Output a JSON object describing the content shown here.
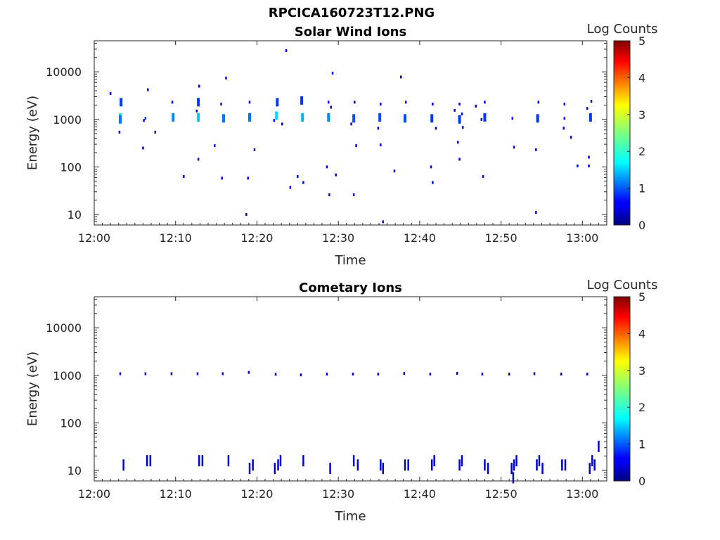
{
  "figure": {
    "title": "RPCICA160723T12.PNG"
  },
  "chart_data": [
    {
      "type": "heatmap",
      "title": "Solar Wind Ions",
      "xlabel": "Time",
      "ylabel": "Energy (eV)",
      "xticks": [
        "12:00",
        "12:10",
        "12:20",
        "12:30",
        "12:40",
        "12:50",
        "13:00"
      ],
      "xlim_minutes": [
        0,
        63
      ],
      "yscale": "log",
      "ylim": [
        6,
        45000
      ],
      "yticks": [
        10,
        100,
        1000,
        10000
      ],
      "ytick_labels": [
        "10",
        "100",
        "1000",
        "10000"
      ],
      "colorbar": {
        "label": "Log Counts",
        "range": [
          0,
          5
        ],
        "ticks": [
          "0",
          "1",
          "2",
          "3",
          "4",
          "5"
        ],
        "colormap": "jet"
      },
      "points": [
        [
          3.2,
          1100,
          1.8
        ],
        [
          3.2,
          1000,
          1.2
        ],
        [
          3.3,
          2300,
          0.9
        ],
        [
          2.0,
          3500,
          0.5
        ],
        [
          3.1,
          540,
          0.5
        ],
        [
          6.3,
          1050,
          0.8
        ],
        [
          6.1,
          950,
          0.5
        ],
        [
          6.6,
          4200,
          0.5
        ],
        [
          6.0,
          250,
          0.5
        ],
        [
          7.5,
          540,
          0.5
        ],
        [
          9.7,
          1100,
          1.3
        ],
        [
          9.6,
          2300,
          0.5
        ],
        [
          11.0,
          63,
          0.5
        ],
        [
          12.8,
          1100,
          1.6
        ],
        [
          12.8,
          2300,
          0.9
        ],
        [
          12.9,
          5000,
          0.5
        ],
        [
          12.8,
          145,
          0.5
        ],
        [
          12.6,
          1500,
          0.5
        ],
        [
          15.9,
          1050,
          1.2
        ],
        [
          15.6,
          2100,
          0.6
        ],
        [
          15.7,
          58,
          0.5
        ],
        [
          16.2,
          7400,
          0.5
        ],
        [
          14.8,
          280,
          0.5
        ],
        [
          19.1,
          1100,
          1.2
        ],
        [
          19.1,
          2300,
          0.5
        ],
        [
          18.9,
          58,
          0.5
        ],
        [
          19.7,
          230,
          0.5
        ],
        [
          18.7,
          10,
          0.6
        ],
        [
          22.4,
          1200,
          1.7
        ],
        [
          22.5,
          2300,
          0.9
        ],
        [
          22.1,
          950,
          0.7
        ],
        [
          23.1,
          800,
          0.5
        ],
        [
          23.6,
          28000,
          0.5
        ],
        [
          24.1,
          37,
          0.5
        ],
        [
          25.6,
          1100,
          1.5
        ],
        [
          25.5,
          2500,
          0.9
        ],
        [
          25.0,
          63,
          0.5
        ],
        [
          25.7,
          47,
          0.5
        ],
        [
          28.8,
          1100,
          1.3
        ],
        [
          28.8,
          2300,
          0.7
        ],
        [
          29.1,
          1800,
          0.5
        ],
        [
          29.3,
          9400,
          0.5
        ],
        [
          28.6,
          100,
          0.5
        ],
        [
          29.7,
          68,
          0.5
        ],
        [
          28.9,
          26,
          0.5
        ],
        [
          31.9,
          1050,
          1.0
        ],
        [
          32.0,
          2300,
          0.5
        ],
        [
          31.6,
          800,
          0.5
        ],
        [
          32.2,
          280,
          0.5
        ],
        [
          31.9,
          26,
          0.5
        ],
        [
          35.1,
          1100,
          1.0
        ],
        [
          35.2,
          2100,
          0.5
        ],
        [
          34.9,
          650,
          0.5
        ],
        [
          35.2,
          290,
          0.5
        ],
        [
          35.5,
          7,
          0.6
        ],
        [
          38.2,
          1050,
          1.0
        ],
        [
          38.3,
          2300,
          0.5
        ],
        [
          37.7,
          7800,
          0.5
        ],
        [
          36.9,
          82,
          0.5
        ],
        [
          41.5,
          1050,
          0.9
        ],
        [
          41.6,
          2100,
          0.5
        ],
        [
          42.0,
          650,
          0.5
        ],
        [
          41.4,
          100,
          0.5
        ],
        [
          41.6,
          47,
          0.5
        ],
        [
          44.9,
          1000,
          0.9
        ],
        [
          44.9,
          2100,
          0.5
        ],
        [
          45.2,
          1300,
          0.5
        ],
        [
          45.3,
          680,
          0.5
        ],
        [
          44.7,
          330,
          0.5
        ],
        [
          44.9,
          145,
          0.5
        ],
        [
          44.3,
          1550,
          0.5
        ],
        [
          48.0,
          1100,
          0.9
        ],
        [
          48.0,
          2300,
          0.5
        ],
        [
          47.6,
          1000,
          0.5
        ],
        [
          46.9,
          1900,
          0.5
        ],
        [
          47.8,
          63,
          0.5
        ],
        [
          51.4,
          1050,
          0.7
        ],
        [
          51.6,
          260,
          0.5
        ],
        [
          54.5,
          1050,
          0.9
        ],
        [
          54.6,
          2300,
          0.5
        ],
        [
          54.3,
          230,
          0.5
        ],
        [
          54.3,
          11,
          0.6
        ],
        [
          57.8,
          1050,
          0.7
        ],
        [
          57.8,
          2100,
          0.5
        ],
        [
          57.7,
          650,
          0.5
        ],
        [
          58.6,
          420,
          0.5
        ],
        [
          59.4,
          105,
          0.5
        ],
        [
          61.0,
          1100,
          0.9
        ],
        [
          61.1,
          2400,
          0.5
        ],
        [
          60.6,
          1700,
          0.5
        ],
        [
          60.8,
          160,
          0.5
        ],
        [
          60.8,
          105,
          0.5
        ]
      ]
    },
    {
      "type": "heatmap",
      "title": "Cometary Ions",
      "xlabel": "Time",
      "ylabel": "Energy (eV)",
      "xticks": [
        "12:00",
        "12:10",
        "12:20",
        "12:30",
        "12:40",
        "12:50",
        "13:00"
      ],
      "xlim_minutes": [
        0,
        63
      ],
      "yscale": "log",
      "ylim": [
        6,
        45000
      ],
      "yticks": [
        10,
        100,
        1000,
        10000
      ],
      "ytick_labels": [
        "10",
        "100",
        "1000",
        "10000"
      ],
      "colorbar": {
        "label": "Log Counts",
        "range": [
          0,
          5
        ],
        "ticks": [
          "0",
          "1",
          "2",
          "3",
          "4",
          "5"
        ],
        "colormap": "jet"
      },
      "points": [
        [
          3.2,
          1080,
          0.4
        ],
        [
          6.3,
          1080,
          0.4
        ],
        [
          9.5,
          1080,
          0.4
        ],
        [
          12.7,
          1080,
          0.4
        ],
        [
          15.8,
          1080,
          0.4
        ],
        [
          19.0,
          1150,
          0.4
        ],
        [
          22.3,
          1050,
          0.4
        ],
        [
          25.4,
          1020,
          0.4
        ],
        [
          28.6,
          1060,
          0.4
        ],
        [
          31.8,
          1060,
          0.4
        ],
        [
          34.9,
          1060,
          0.4
        ],
        [
          38.1,
          1100,
          0.4
        ],
        [
          41.3,
          1060,
          0.4
        ],
        [
          44.6,
          1100,
          0.4
        ],
        [
          47.7,
          1060,
          0.4
        ],
        [
          51.0,
          1060,
          0.4
        ],
        [
          54.1,
          1080,
          0.4
        ],
        [
          57.4,
          1060,
          0.4
        ],
        [
          60.6,
          1060,
          0.4
        ],
        [
          62.0,
          32,
          0.4
        ],
        [
          3.6,
          13,
          0.4
        ],
        [
          6.5,
          16,
          0.4
        ],
        [
          6.9,
          16,
          0.4
        ],
        [
          12.9,
          16,
          0.4
        ],
        [
          13.3,
          16,
          0.4
        ],
        [
          16.5,
          16,
          0.4
        ],
        [
          19.1,
          11,
          0.4
        ],
        [
          19.5,
          13,
          0.4
        ],
        [
          22.2,
          11,
          0.4
        ],
        [
          22.6,
          13,
          0.4
        ],
        [
          22.9,
          16,
          0.4
        ],
        [
          25.7,
          16,
          0.4
        ],
        [
          29.0,
          11,
          0.4
        ],
        [
          31.9,
          16,
          0.4
        ],
        [
          32.4,
          13,
          0.4
        ],
        [
          35.2,
          13,
          0.4
        ],
        [
          35.5,
          11,
          0.4
        ],
        [
          38.2,
          13,
          0.4
        ],
        [
          38.6,
          13,
          0.4
        ],
        [
          41.5,
          13,
          0.4
        ],
        [
          41.8,
          16,
          0.4
        ],
        [
          44.9,
          13,
          0.4
        ],
        [
          45.2,
          16,
          0.4
        ],
        [
          48.0,
          13,
          0.4
        ],
        [
          48.4,
          11,
          0.4
        ],
        [
          51.3,
          11,
          0.4
        ],
        [
          51.6,
          13,
          0.4
        ],
        [
          51.9,
          16,
          0.4
        ],
        [
          51.5,
          7,
          0.4
        ],
        [
          54.4,
          13,
          0.4
        ],
        [
          54.7,
          16,
          0.4
        ],
        [
          55.1,
          11,
          0.4
        ],
        [
          57.5,
          13,
          0.4
        ],
        [
          57.9,
          13,
          0.4
        ],
        [
          60.9,
          11,
          0.4
        ],
        [
          61.2,
          16,
          0.4
        ],
        [
          61.5,
          13,
          0.4
        ]
      ]
    }
  ]
}
